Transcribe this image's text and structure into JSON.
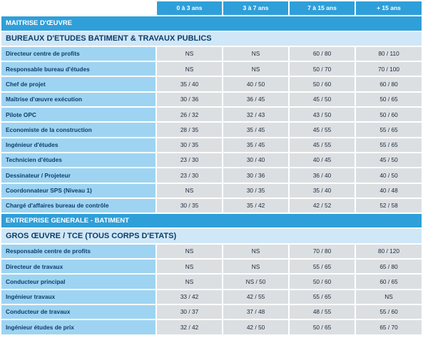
{
  "columns": [
    "0 à 3 ans",
    "3 à 7 ans",
    "7 à 15 ans",
    "+ 15 ans"
  ],
  "sections": [
    {
      "title": "MAITRISE D'ŒUVRE",
      "subsections": [
        {
          "title": "BUREAUX D'ETUDES BATIMENT & TRAVAUX PUBLICS",
          "rows": [
            {
              "label": "Directeur centre de profits",
              "values": [
                "NS",
                "NS",
                "60 / 80",
                "80 / 110"
              ]
            },
            {
              "label": "Responsable bureau d'études",
              "values": [
                "NS",
                "NS",
                "50 / 70",
                "70 / 100"
              ]
            },
            {
              "label": "Chef de projet",
              "values": [
                "35 / 40",
                "40 / 50",
                "50 / 60",
                "60 / 80"
              ]
            },
            {
              "label": "Maîtrise d'œuvre exécution",
              "values": [
                "30 / 36",
                "36 / 45",
                "45 / 50",
                "50 / 65"
              ]
            },
            {
              "label": "Pilote OPC",
              "values": [
                "26 / 32",
                "32 / 43",
                "43 / 50",
                "50 / 60"
              ]
            },
            {
              "label": "Economiste de la construction",
              "values": [
                "28 / 35",
                "35 / 45",
                "45 / 55",
                "55 / 65"
              ]
            },
            {
              "label": "Ingénieur d'études",
              "values": [
                "30 / 35",
                "35 / 45",
                "45 / 55",
                "55 / 65"
              ]
            },
            {
              "label": "Technicien d'études",
              "values": [
                "23 / 30",
                "30 / 40",
                "40 / 45",
                "45 / 50"
              ]
            },
            {
              "label": "Dessinateur / Projeteur",
              "values": [
                "23 / 30",
                "30 / 36",
                "36 / 40",
                "40 / 50"
              ]
            },
            {
              "label": "Coordonnateur SPS (Niveau 1)",
              "values": [
                "NS",
                "30 / 35",
                "35 / 40",
                "40 / 48"
              ]
            },
            {
              "label": "Chargé d'affaires bureau de contrôle",
              "values": [
                "30 / 35",
                "35 / 42",
                "42 / 52",
                "52 / 58"
              ]
            }
          ]
        }
      ]
    },
    {
      "title": "ENTREPRISE GENERALE - BATIMENT",
      "subsections": [
        {
          "title": "GROS ŒUVRE / TCE (TOUS CORPS D'ETATS)",
          "rows": [
            {
              "label": "Responsable centre de profits",
              "values": [
                "NS",
                "NS",
                "70 / 80",
                "80 / 120"
              ]
            },
            {
              "label": "Directeur de travaux",
              "values": [
                "NS",
                "NS",
                "55 / 65",
                "65 / 80"
              ]
            },
            {
              "label": "Conducteur principal",
              "values": [
                "NS",
                "NS / 50",
                "50 / 60",
                "60 / 65"
              ]
            },
            {
              "label": "Ingénieur travaux",
              "values": [
                "33 / 42",
                "42 / 55",
                "55 / 65",
                "NS"
              ]
            },
            {
              "label": "Conducteur de travaux",
              "values": [
                "30 / 37",
                "37 / 48",
                "48 / 55",
                "55 / 60"
              ]
            },
            {
              "label": "Ingénieur études de prix",
              "values": [
                "32 / 42",
                "42 / 50",
                "50 / 65",
                "65 / 70"
              ]
            }
          ]
        }
      ]
    }
  ]
}
